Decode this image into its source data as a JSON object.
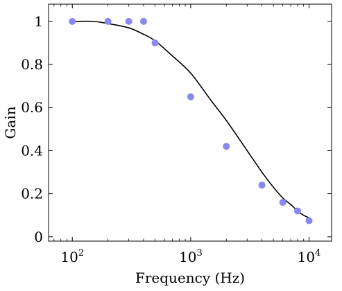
{
  "chart_data": {
    "type": "scatter",
    "xlabel": "Frequency (Hz)",
    "ylabel": "Gain",
    "x_scale": "log",
    "xlim": [
      63,
      15500
    ],
    "ylim": [
      -0.02,
      1.08
    ],
    "x_ticks": [
      {
        "value": 100,
        "base": "10",
        "exp": "2"
      },
      {
        "value": 1000,
        "base": "10",
        "exp": "3"
      },
      {
        "value": 10000,
        "base": "10",
        "exp": "4"
      }
    ],
    "y_ticks": [
      0,
      0.2,
      0.4,
      0.6,
      0.8,
      1
    ],
    "y_tick_labels": [
      "0",
      "0.2",
      "0.4",
      "0.6",
      "0.8",
      "1"
    ],
    "grid": false,
    "series": [
      {
        "kind": "points",
        "color": "#8888ee",
        "x": [
          100,
          200,
          300,
          400,
          500,
          1000,
          2000,
          4000,
          6000,
          8000,
          10000
        ],
        "y": [
          1.0,
          1.0,
          1.0,
          1.0,
          0.9,
          0.65,
          0.42,
          0.24,
          0.16,
          0.12,
          0.075
        ]
      },
      {
        "kind": "line",
        "color": "#000000",
        "x": [
          100,
          150,
          200,
          300,
          400,
          500,
          700,
          1000,
          1500,
          2000,
          3000,
          4000,
          5000,
          6000,
          7000,
          8000,
          9000,
          10000
        ],
        "y": [
          1.0,
          1.0,
          0.99,
          0.97,
          0.94,
          0.91,
          0.84,
          0.76,
          0.63,
          0.54,
          0.4,
          0.3,
          0.23,
          0.18,
          0.15,
          0.12,
          0.1,
          0.088
        ]
      }
    ]
  }
}
